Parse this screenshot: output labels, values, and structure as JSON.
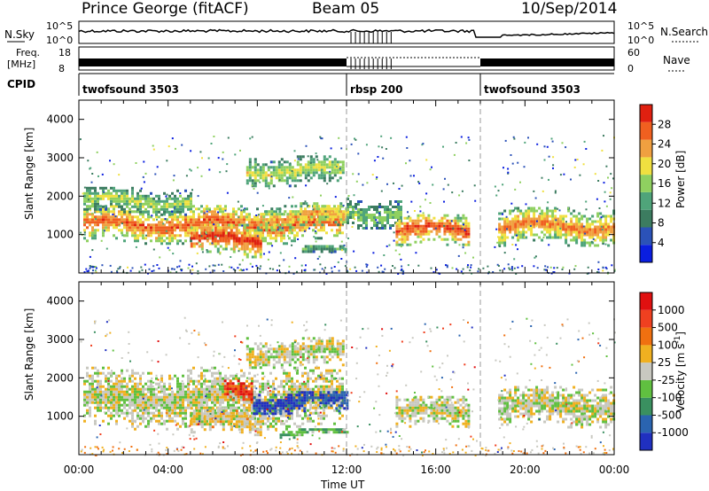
{
  "header": {
    "station": "Prince George (fitACF)",
    "beam": "Beam 05",
    "date": "10/Sep/2014"
  },
  "noise_panel": {
    "left_label": "N.Sky",
    "left_ticks": [
      "10^5",
      "10^0"
    ],
    "right_label": "N.Search",
    "right_ticks": [
      "10^5",
      "10^0"
    ]
  },
  "freq_panel": {
    "left_label_top": "Freq.",
    "left_label_unit": "[MHz]",
    "left_ticks": [
      "18",
      "8"
    ],
    "right_label": "Nave",
    "right_ticks": [
      "60",
      "0"
    ]
  },
  "cpid": {
    "label": "CPID",
    "segments": [
      {
        "name": "twofsound 3503",
        "start_hr": 0
      },
      {
        "name": "rbsp 200",
        "start_hr": 12
      },
      {
        "name": "twofsound 3503",
        "start_hr": 18
      }
    ]
  },
  "colors": {
    "power": [
      "#0a1ee0",
      "#2b52b8",
      "#3c7c60",
      "#4fa47a",
      "#8fd060",
      "#f0e040",
      "#f0a040",
      "#f06020",
      "#e02010"
    ],
    "velocity": [
      "#2030c0",
      "#2a64b0",
      "#3a9060",
      "#60c040",
      "#c8c8c0",
      "#f0b020",
      "#f07010",
      "#f04020",
      "#e01010"
    ]
  },
  "chart_data": [
    {
      "type": "heatmap",
      "title": "Power",
      "ylabel": "Slant Range [km]",
      "xlim": [
        0,
        24
      ],
      "ylim": [
        0,
        4500
      ],
      "yticks": [
        "1000",
        "2000",
        "3000",
        "4000"
      ],
      "colorbar": {
        "label": "Power [dB]",
        "ticks": [
          "28",
          "24",
          "20",
          "16",
          "12",
          "8",
          "4"
        ]
      },
      "bands": [
        {
          "x0": 0.2,
          "x1": 11.8,
          "y_center": 1300,
          "thickness": 500,
          "level": 0.85
        },
        {
          "x0": 0.2,
          "x1": 5.0,
          "y_center": 1900,
          "thickness": 350,
          "level": 0.55
        },
        {
          "x0": 5.0,
          "x1": 8.2,
          "y_center": 900,
          "thickness": 450,
          "level": 0.95
        },
        {
          "x0": 7.5,
          "x1": 11.8,
          "y_center": 2700,
          "thickness": 400,
          "level": 0.6
        },
        {
          "x0": 8.0,
          "x1": 12.0,
          "y_center": 1500,
          "thickness": 350,
          "level": 0.75
        },
        {
          "x0": 12.0,
          "x1": 14.5,
          "y_center": 1600,
          "thickness": 400,
          "level": 0.5
        },
        {
          "x0": 14.2,
          "x1": 17.5,
          "y_center": 1150,
          "thickness": 450,
          "level": 0.9
        },
        {
          "x0": 18.8,
          "x1": 24.0,
          "y_center": 1250,
          "thickness": 500,
          "level": 0.8
        },
        {
          "x0": 10.0,
          "x1": 12.0,
          "y_center": 600,
          "thickness": 150,
          "level": 0.45
        }
      ]
    },
    {
      "type": "heatmap",
      "title": "Velocity",
      "ylabel": "Slant Range [km]",
      "xlabel": "Time UT",
      "xlim": [
        0,
        24
      ],
      "ylim": [
        0,
        4500
      ],
      "xticks": [
        "00:00",
        "04:00",
        "08:00",
        "12:00",
        "16:00",
        "20:00",
        "00:00"
      ],
      "yticks": [
        "1000",
        "2000",
        "3000",
        "4000"
      ],
      "colorbar": {
        "label": "Velocity [m s^-1]",
        "ticks": [
          "1000",
          "500",
          "100",
          "25",
          "-25",
          "-100",
          "-500",
          "-1000"
        ]
      },
      "bands": [
        {
          "x0": 0.2,
          "x1": 11.8,
          "y_center": 1500,
          "thickness": 800,
          "level": 0.5
        },
        {
          "x0": 7.5,
          "x1": 11.8,
          "y_center": 2700,
          "thickness": 400,
          "level": 0.5
        },
        {
          "x0": 7.8,
          "x1": 12.0,
          "y_center": 1400,
          "thickness": 300,
          "level": 0.1
        },
        {
          "x0": 5.0,
          "x1": 8.2,
          "y_center": 900,
          "thickness": 350,
          "level": 0.55
        },
        {
          "x0": 9.0,
          "x1": 12.0,
          "y_center": 600,
          "thickness": 120,
          "level": 0.35
        },
        {
          "x0": 14.2,
          "x1": 17.5,
          "y_center": 1150,
          "thickness": 450,
          "level": 0.5
        },
        {
          "x0": 18.8,
          "x1": 24.0,
          "y_center": 1300,
          "thickness": 550,
          "level": 0.5
        },
        {
          "x0": 6.5,
          "x1": 7.8,
          "y_center": 1700,
          "thickness": 300,
          "level": 0.85
        }
      ]
    }
  ]
}
